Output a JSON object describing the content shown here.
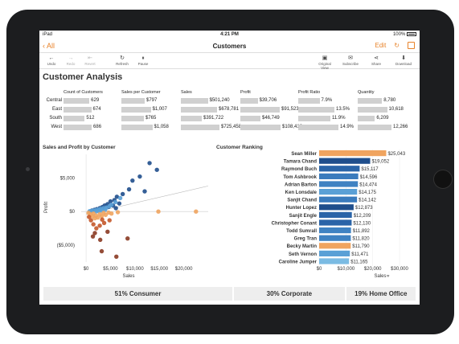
{
  "status": {
    "carrier": "iPad",
    "time": "4:21 PM",
    "battery": "100%"
  },
  "nav": {
    "back": "All",
    "title": "Customers",
    "edit": "Edit",
    "refresh_icon": "refresh-icon",
    "share_icon": "window-icon"
  },
  "toolbar": {
    "items": [
      {
        "label": "Undo",
        "icon": "←",
        "enabled": true
      },
      {
        "label": "Redo",
        "icon": "→",
        "enabled": false
      },
      {
        "label": "Revert",
        "icon": "⇤",
        "enabled": false
      },
      {
        "label": "Refresh",
        "icon": "↻",
        "enabled": true
      },
      {
        "label": "Pause",
        "icon": "⏸",
        "enabled": true
      },
      {
        "label": "Original View",
        "icon": "▣",
        "enabled": true
      },
      {
        "label": "Subscribe",
        "icon": "✉",
        "enabled": true
      },
      {
        "label": "Share",
        "icon": "⋖",
        "enabled": true
      },
      {
        "label": "Download",
        "icon": "⬇",
        "enabled": true
      }
    ]
  },
  "page": {
    "title": "Customer Analysis"
  },
  "kpi": {
    "headers": [
      "Count of Customers",
      "Sales per Customer",
      "Sales",
      "Profit",
      "Profit Ratio",
      "Quantity"
    ],
    "rows": [
      {
        "region": "Central",
        "values": [
          "629",
          "$797",
          "$501,240",
          "$39,706",
          "7.9%",
          "8,780"
        ],
        "fill": [
          0.67,
          0.58,
          0.67,
          0.43,
          0.53,
          0.72
        ]
      },
      {
        "region": "East",
        "values": [
          "674",
          "$1,007",
          "$678,781",
          "$91,523",
          "13.5%",
          "10,618"
        ],
        "fill": [
          0.72,
          0.73,
          0.9,
          0.98,
          0.9,
          0.87
        ]
      },
      {
        "region": "South",
        "values": [
          "512",
          "$765",
          "$391,722",
          "$46,749",
          "11.9%",
          "6,209"
        ],
        "fill": [
          0.55,
          0.56,
          0.52,
          0.5,
          0.8,
          0.51
        ]
      },
      {
        "region": "West",
        "values": [
          "686",
          "$1,058",
          "$725,458",
          "$108,418",
          "14.9%",
          "12,266"
        ],
        "fill": [
          0.73,
          0.77,
          0.96,
          1.0,
          1.0,
          1.0
        ]
      }
    ]
  },
  "scatter": {
    "title": "Sales and Profit by Customer",
    "xlabel": "Sales",
    "ylabel": "Profit",
    "xticks": [
      "$0",
      "$5,000",
      "$10,000",
      "$15,000",
      "$20,000"
    ],
    "yticks": [
      "$5,000",
      "$0",
      "($5,000)"
    ]
  },
  "ranking": {
    "title": "Customer Ranking",
    "xlabel": "Sales",
    "xticks": [
      "$0",
      "$10,000",
      "$20,000",
      "$30,000"
    ],
    "filter_icon": "filter-icon"
  },
  "segments": [
    {
      "label": "51% Consumer",
      "share": 0.51
    },
    {
      "label": "30% Corporate",
      "share": 0.3
    },
    {
      "label": "19% Home Office",
      "share": 0.19
    }
  ],
  "chart_data": [
    {
      "type": "bar",
      "title": "Customer Ranking",
      "xlabel": "Sales",
      "xlim": [
        0,
        30000
      ],
      "categories": [
        "Sean Miller",
        "Tamara Chand",
        "Raymond Buch",
        "Tom Ashbrook",
        "Adrian Barton",
        "Ken Lonsdale",
        "Sanjit Chand",
        "Hunter Lopez",
        "Sanjit Engle",
        "Christopher Conant",
        "Todd Sumrall",
        "Greg Tran",
        "Becky Martin",
        "Seth Vernon",
        "Caroline Jumper"
      ],
      "values": [
        25043,
        19052,
        15117,
        14596,
        14474,
        14175,
        14142,
        12873,
        12209,
        12130,
        11892,
        11820,
        11790,
        11471,
        11165
      ],
      "labels": [
        "$25,043",
        "$19,052",
        "$15,117",
        "$14,596",
        "$14,474",
        "$14,175",
        "$14,142",
        "$12,873",
        "$12,209",
        "$12,130",
        "$11,892",
        "$11,820",
        "$11,790",
        "$11,471",
        "$11,165"
      ],
      "colors": [
        "#f0a45f",
        "#1f4e8c",
        "#2a64a8",
        "#3a7bbd",
        "#3f82c2",
        "#5aa0d6",
        "#3a7bbd",
        "#1f4e8c",
        "#2a64a8",
        "#2a64a8",
        "#3f82c2",
        "#3f82c2",
        "#f0a45f",
        "#5aa0d6",
        "#7bbbe3"
      ]
    },
    {
      "type": "scatter",
      "title": "Sales and Profit by Customer",
      "xlabel": "Sales",
      "ylabel": "Profit",
      "xlim": [
        -1000,
        25000
      ],
      "ylim": [
        -7500,
        8500
      ],
      "series": [
        {
          "name": "",
          "color": "#1f4e8c",
          "points": [
            [
              13000,
              7200
            ],
            [
              14500,
              6200
            ],
            [
              11000,
              5200
            ],
            [
              9500,
              4600
            ],
            [
              8800,
              3300
            ],
            [
              12000,
              3000
            ],
            [
              7500,
              2600
            ],
            [
              6300,
              2200
            ],
            [
              5800,
              1700
            ],
            [
              5000,
              1500
            ],
            [
              4400,
              1100
            ],
            [
              3800,
              900
            ],
            [
              3300,
              650
            ],
            [
              2800,
              500
            ],
            [
              2200,
              350
            ],
            [
              1700,
              250
            ],
            [
              1200,
              150
            ],
            [
              6800,
              1200
            ],
            [
              5500,
              900
            ],
            [
              4600,
              700
            ],
            [
              6100,
              500
            ]
          ]
        },
        {
          "name": "",
          "color": "#5aa0d6",
          "points": [
            [
              7000,
              2000
            ],
            [
              6000,
              1400
            ],
            [
              5200,
              1000
            ],
            [
              4800,
              800
            ],
            [
              4200,
              600
            ],
            [
              3600,
              500
            ],
            [
              3000,
              400
            ],
            [
              2500,
              300
            ],
            [
              2000,
              200
            ],
            [
              1500,
              150
            ],
            [
              1000,
              80
            ],
            [
              700,
              40
            ],
            [
              3900,
              250
            ],
            [
              3200,
              150
            ],
            [
              2600,
              80
            ],
            [
              2100,
              30
            ]
          ]
        },
        {
          "name": "",
          "color": "#f0a45f",
          "points": [
            [
              22500,
              0
            ],
            [
              14800,
              0
            ],
            [
              6500,
              -100
            ],
            [
              5200,
              -300
            ],
            [
              4000,
              -500
            ],
            [
              3200,
              -700
            ],
            [
              2400,
              -900
            ],
            [
              1800,
              -1000
            ],
            [
              1300,
              -700
            ],
            [
              900,
              -400
            ],
            [
              500,
              -200
            ],
            [
              2800,
              -400
            ],
            [
              2000,
              -600
            ],
            [
              1500,
              -300
            ],
            [
              3600,
              -200
            ],
            [
              4600,
              -150
            ]
          ]
        },
        {
          "name": "",
          "color": "#c4582a",
          "points": [
            [
              4800,
              -1300
            ],
            [
              3700,
              -1700
            ],
            [
              2800,
              -2100
            ],
            [
              2100,
              -2500
            ],
            [
              1500,
              -1900
            ],
            [
              1000,
              -1300
            ],
            [
              600,
              -800
            ],
            [
              3300,
              -1200
            ]
          ]
        },
        {
          "name": "",
          "color": "#8a3a22",
          "points": [
            [
              1800,
              -3200
            ],
            [
              1400,
              -3700
            ],
            [
              2900,
              -4200
            ],
            [
              8500,
              -4000
            ],
            [
              3200,
              -5900
            ],
            [
              6200,
              -6700
            ],
            [
              4400,
              -3000
            ]
          ]
        }
      ]
    }
  ]
}
